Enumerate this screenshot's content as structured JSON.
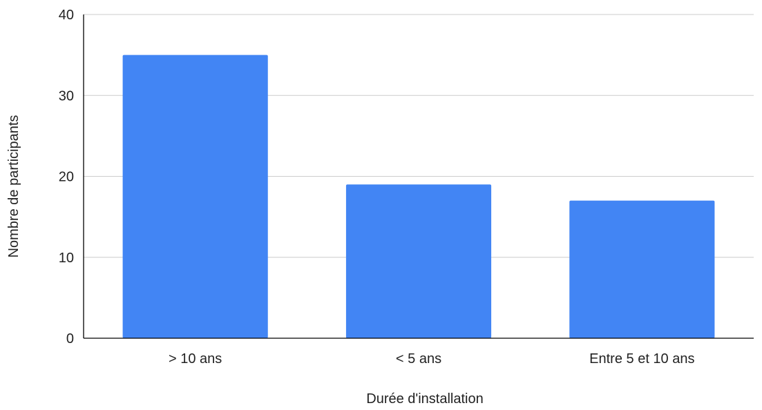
{
  "chart_data": {
    "type": "bar",
    "categories": [
      "> 10 ans",
      "< 5 ans",
      "Entre 5 et 10 ans"
    ],
    "values": [
      35,
      19,
      17
    ],
    "xlabel": "Durée d'installation",
    "ylabel": "Nombre de participants",
    "ylim": [
      0,
      40
    ],
    "yticks": [
      "0",
      "10",
      "20",
      "30",
      "40"
    ],
    "grid": true,
    "bar_color": "#4285f4",
    "grid_color": "#cccccc",
    "axis_color": "#000000"
  }
}
